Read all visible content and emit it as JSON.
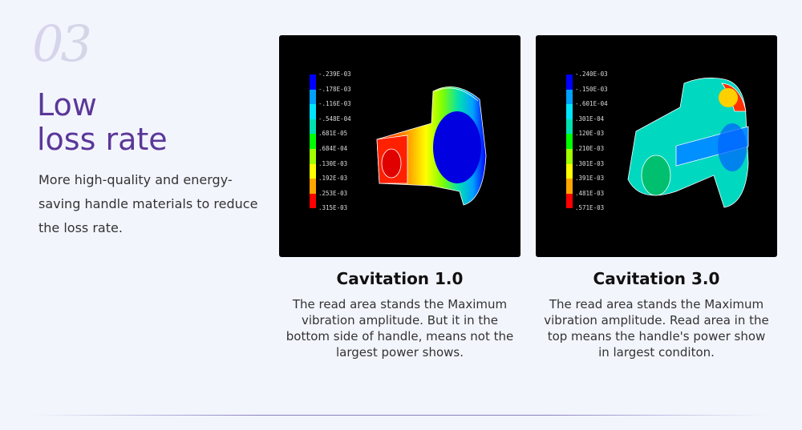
{
  "section": {
    "number": "03",
    "title_line1": "Low",
    "title_line2": "loss rate",
    "description": "More high-quality and energy-saving handle materials to reduce the loss rate."
  },
  "colors": {
    "title": "#5b3799",
    "contour_bands": [
      "#0000ff",
      "#00a0ff",
      "#00e5ff",
      "#00e0b0",
      "#00ff00",
      "#a0ff00",
      "#ffff00",
      "#ffa500",
      "#ff0000"
    ]
  },
  "panels": [
    {
      "caption": "Cavitation 1.0",
      "text": "The read area stands the Maximum vibration amplitude. But it in the bottom side of handle, means not the largest power shows.",
      "legend": [
        "-.239E-03",
        "-.178E-03",
        "-.116E-03",
        "-.548E-04",
        ".681E-05",
        ".684E-04",
        ".130E-03",
        ".192E-03",
        ".253E-03",
        ".315E-03"
      ]
    },
    {
      "caption": "Cavitation 3.0",
      "text": "The read area stands the Maximum vibration amplitude. Read area in the top means the handle's power show in largest conditon.",
      "legend": [
        "-.240E-03",
        "-.150E-03",
        "-.601E-04",
        ".301E-04",
        ".120E-03",
        ".210E-03",
        ".301E-03",
        ".391E-03",
        ".481E-03",
        ".571E-03"
      ]
    }
  ]
}
